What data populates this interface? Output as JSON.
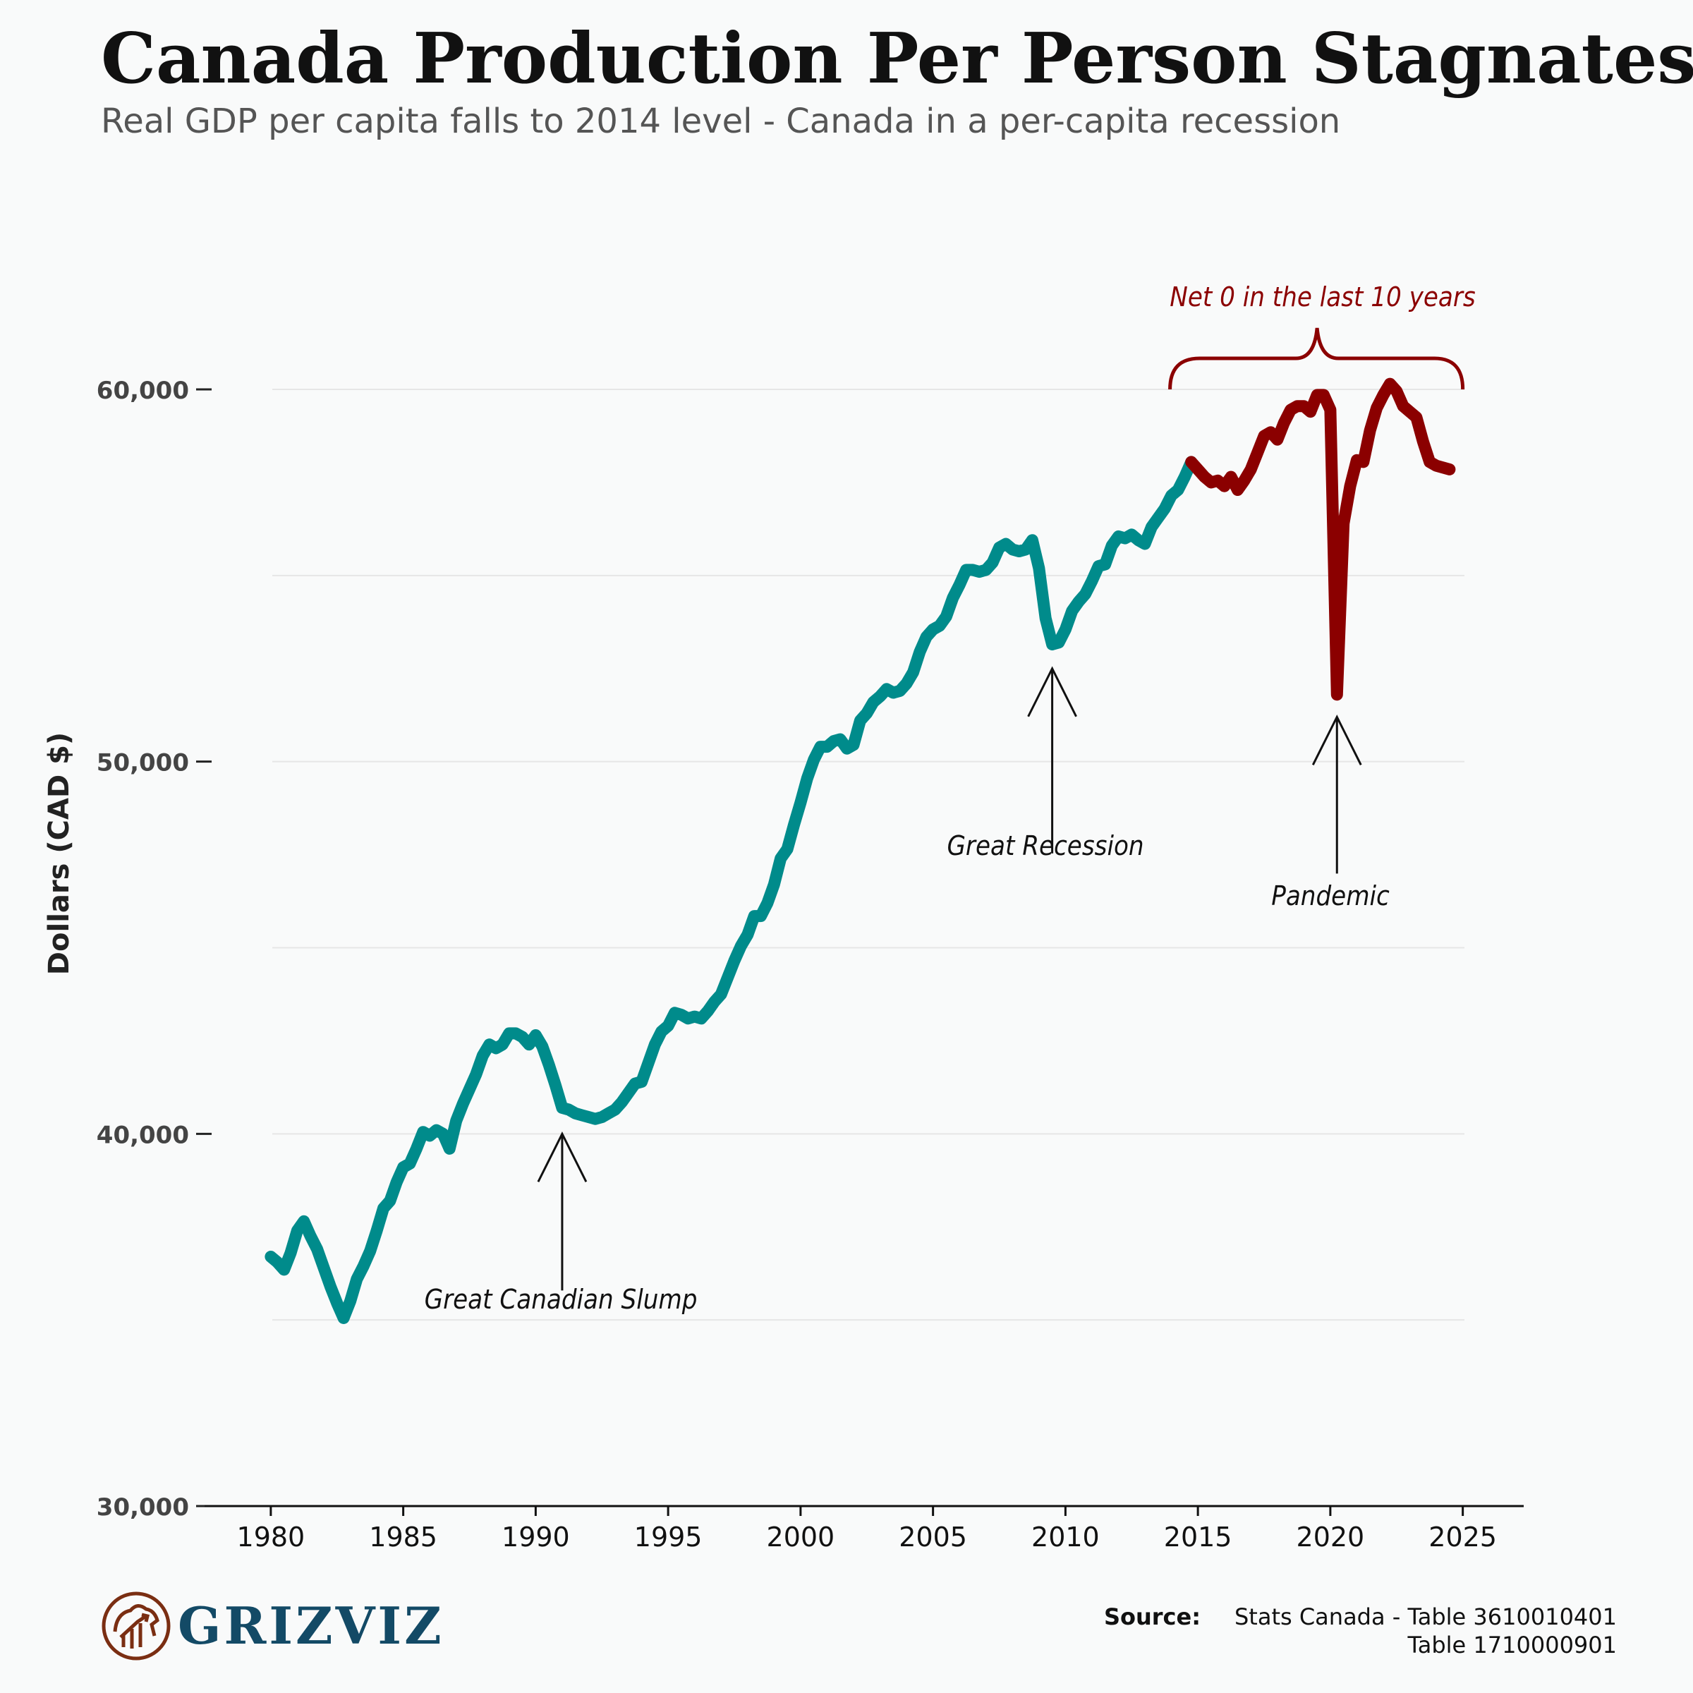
{
  "title": "Canada Production Per Person Stagnates",
  "subtitle": "Real GDP per capita falls to 2014 level - Canada in a per-capita recession",
  "logo": {
    "name": "GRIZVIZ"
  },
  "source": {
    "label": "Source:",
    "line1": "Stats Canada - Table 3610010401",
    "line2": "Table 1710000901"
  },
  "colors": {
    "before_2015": "#008b8b",
    "since_2015": "#8b0000",
    "grid": "#e6e6e6"
  },
  "annotations": [
    {
      "text": "Great Canadian Slump",
      "x": 1991.0,
      "y": 40000
    },
    {
      "text": "Great Recession",
      "x": 2009.5,
      "y": 52500
    },
    {
      "text": "Pandemic",
      "x": 2020.25,
      "y": 51200
    },
    {
      "text": "Net 0 in the last 10 years",
      "x_start": 2014.0,
      "x_end": 2025.0
    }
  ],
  "chart_data": {
    "type": "line",
    "xlabel": "",
    "ylabel": "Dollars (CAD $)",
    "xlim": [
      1977.5,
      2027.3
    ],
    "ylim": [
      30000,
      63000
    ],
    "x_ticks": [
      1980,
      1985,
      1990,
      1995,
      2000,
      2005,
      2010,
      2015,
      2020,
      2025
    ],
    "x_tick_labels": [
      "1980",
      "1985",
      "1990",
      "1995",
      "2000",
      "2005",
      "2010",
      "2015",
      "2020",
      "2025"
    ],
    "y_ticks": [
      30000,
      40000,
      50000,
      60000
    ],
    "y_tick_labels": [
      "30,000",
      "40,000",
      "50,000",
      "60,000"
    ],
    "grid": true,
    "series": [
      {
        "values": [
          [
            1980.0,
            36700
          ],
          [
            1980.25,
            36550
          ],
          [
            1980.5,
            36350
          ],
          [
            1980.75,
            36800
          ],
          [
            1981.0,
            37400
          ],
          [
            1981.25,
            37650
          ],
          [
            1981.5,
            37250
          ],
          [
            1981.75,
            36900
          ],
          [
            1982.0,
            36400
          ],
          [
            1982.25,
            35900
          ],
          [
            1982.5,
            35450
          ],
          [
            1982.75,
            35050
          ],
          [
            1983.0,
            35500
          ],
          [
            1983.25,
            36100
          ],
          [
            1983.5,
            36450
          ],
          [
            1983.75,
            36850
          ],
          [
            1984.0,
            37400
          ],
          [
            1984.25,
            38000
          ],
          [
            1984.5,
            38200
          ],
          [
            1984.75,
            38700
          ],
          [
            1985.0,
            39100
          ],
          [
            1985.25,
            39200
          ],
          [
            1985.5,
            39600
          ],
          [
            1985.75,
            40050
          ],
          [
            1986.0,
            39950
          ],
          [
            1986.25,
            40100
          ],
          [
            1986.5,
            40000
          ],
          [
            1986.75,
            39600
          ],
          [
            1987.0,
            40350
          ],
          [
            1987.25,
            40800
          ],
          [
            1987.5,
            41200
          ],
          [
            1987.75,
            41600
          ],
          [
            1988.0,
            42100
          ],
          [
            1988.25,
            42400
          ],
          [
            1988.5,
            42300
          ],
          [
            1988.75,
            42400
          ],
          [
            1989.0,
            42700
          ],
          [
            1989.25,
            42700
          ],
          [
            1989.5,
            42600
          ],
          [
            1989.75,
            42400
          ],
          [
            1990.0,
            42650
          ],
          [
            1990.25,
            42350
          ],
          [
            1990.5,
            41850
          ],
          [
            1990.75,
            41300
          ],
          [
            1991.0,
            40700
          ],
          [
            1991.25,
            40650
          ],
          [
            1991.5,
            40550
          ],
          [
            1991.75,
            40500
          ],
          [
            1992.0,
            40450
          ],
          [
            1992.25,
            40400
          ],
          [
            1992.5,
            40450
          ],
          [
            1992.75,
            40550
          ],
          [
            1993.0,
            40650
          ],
          [
            1993.25,
            40850
          ],
          [
            1993.5,
            41100
          ],
          [
            1993.75,
            41350
          ],
          [
            1994.0,
            41400
          ],
          [
            1994.25,
            41900
          ],
          [
            1994.5,
            42400
          ],
          [
            1994.75,
            42750
          ],
          [
            1995.0,
            42900
          ],
          [
            1995.25,
            43250
          ],
          [
            1995.5,
            43200
          ],
          [
            1995.75,
            43100
          ],
          [
            1996.0,
            43150
          ],
          [
            1996.25,
            43100
          ],
          [
            1996.5,
            43300
          ],
          [
            1996.75,
            43550
          ],
          [
            1997.0,
            43750
          ],
          [
            1997.25,
            44200
          ],
          [
            1997.5,
            44650
          ],
          [
            1997.75,
            45050
          ],
          [
            1998.0,
            45350
          ],
          [
            1998.25,
            45850
          ],
          [
            1998.5,
            45850
          ],
          [
            1998.75,
            46200
          ],
          [
            1999.0,
            46700
          ],
          [
            1999.25,
            47400
          ],
          [
            1999.5,
            47650
          ],
          [
            1999.75,
            48300
          ],
          [
            2000.0,
            48900
          ],
          [
            2000.25,
            49550
          ],
          [
            2000.5,
            50050
          ],
          [
            2000.75,
            50400
          ],
          [
            2001.0,
            50400
          ],
          [
            2001.25,
            50550
          ],
          [
            2001.5,
            50600
          ],
          [
            2001.75,
            50350
          ],
          [
            2002.0,
            50450
          ],
          [
            2002.25,
            51100
          ],
          [
            2002.5,
            51300
          ],
          [
            2002.75,
            51600
          ],
          [
            2003.0,
            51750
          ],
          [
            2003.25,
            51950
          ],
          [
            2003.5,
            51850
          ],
          [
            2003.75,
            51900
          ],
          [
            2004.0,
            52100
          ],
          [
            2004.25,
            52400
          ],
          [
            2004.5,
            52950
          ],
          [
            2004.75,
            53350
          ],
          [
            2005.0,
            53550
          ],
          [
            2005.25,
            53650
          ],
          [
            2005.5,
            53900
          ],
          [
            2005.75,
            54400
          ],
          [
            2006.0,
            54750
          ],
          [
            2006.25,
            55150
          ],
          [
            2006.5,
            55150
          ],
          [
            2006.75,
            55100
          ],
          [
            2007.0,
            55150
          ],
          [
            2007.25,
            55350
          ],
          [
            2007.5,
            55750
          ],
          [
            2007.75,
            55850
          ],
          [
            2008.0,
            55700
          ],
          [
            2008.25,
            55650
          ],
          [
            2008.5,
            55700
          ],
          [
            2008.75,
            55950
          ],
          [
            2009.0,
            55200
          ],
          [
            2009.25,
            53850
          ],
          [
            2009.5,
            53150
          ],
          [
            2009.75,
            53200
          ],
          [
            2010.0,
            53550
          ],
          [
            2010.25,
            54050
          ],
          [
            2010.5,
            54300
          ],
          [
            2010.75,
            54500
          ],
          [
            2011.0,
            54850
          ],
          [
            2011.25,
            55250
          ],
          [
            2011.5,
            55300
          ],
          [
            2011.75,
            55800
          ],
          [
            2012.0,
            56050
          ],
          [
            2012.25,
            56000
          ],
          [
            2012.5,
            56100
          ],
          [
            2012.75,
            55950
          ],
          [
            2013.0,
            55850
          ],
          [
            2013.25,
            56300
          ],
          [
            2013.5,
            56550
          ],
          [
            2013.75,
            56800
          ],
          [
            2014.0,
            57150
          ],
          [
            2014.25,
            57300
          ],
          [
            2014.5,
            57650
          ],
          [
            2014.75,
            58050
          ]
        ]
      },
      {
        "values": [
          [
            2014.75,
            58050
          ],
          [
            2015.0,
            57850
          ],
          [
            2015.25,
            57650
          ],
          [
            2015.5,
            57500
          ],
          [
            2015.75,
            57550
          ],
          [
            2016.0,
            57400
          ],
          [
            2016.25,
            57650
          ],
          [
            2016.5,
            57300
          ],
          [
            2016.75,
            57550
          ],
          [
            2017.0,
            57850
          ],
          [
            2017.25,
            58300
          ],
          [
            2017.5,
            58750
          ],
          [
            2017.75,
            58850
          ],
          [
            2018.0,
            58650
          ],
          [
            2018.25,
            59100
          ],
          [
            2018.5,
            59450
          ],
          [
            2018.75,
            59550
          ],
          [
            2019.0,
            59550
          ],
          [
            2019.25,
            59400
          ],
          [
            2019.5,
            59850
          ],
          [
            2019.75,
            59850
          ],
          [
            2020.0,
            59450
          ],
          [
            2020.25,
            51800
          ],
          [
            2020.5,
            56400
          ],
          [
            2020.75,
            57400
          ],
          [
            2021.0,
            58100
          ],
          [
            2021.25,
            58050
          ],
          [
            2021.5,
            58900
          ],
          [
            2021.75,
            59500
          ],
          [
            2022.0,
            59850
          ],
          [
            2022.25,
            60150
          ],
          [
            2022.5,
            59950
          ],
          [
            2022.75,
            59550
          ],
          [
            2023.0,
            59400
          ],
          [
            2023.25,
            59250
          ],
          [
            2023.5,
            58600
          ],
          [
            2023.75,
            58050
          ],
          [
            2024.0,
            57950
          ],
          [
            2024.25,
            57900
          ],
          [
            2024.5,
            57850
          ]
        ]
      }
    ]
  }
}
